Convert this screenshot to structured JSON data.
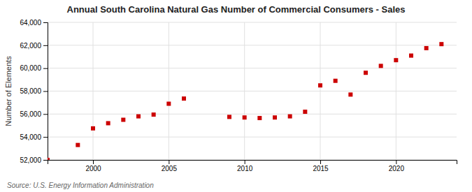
{
  "chart_data": {
    "type": "scatter",
    "title": "Annual South Carolina Natural Gas Number of Commercial Consumers - Sales",
    "y_label": "Number of Elements",
    "annotations": [
      "Source: U.S. Energy Information Administration"
    ],
    "x": [
      1997,
      1999,
      2000,
      2001,
      2002,
      2003,
      2004,
      2005,
      2006,
      2009,
      2010,
      2011,
      2012,
      2013,
      2014,
      2015,
      2016,
      2017,
      2018,
      2019,
      2020,
      2021,
      2022,
      2023
    ],
    "values": [
      52000,
      53300,
      54750,
      55200,
      55500,
      55800,
      55950,
      56900,
      57350,
      55750,
      55700,
      55650,
      55700,
      55800,
      56200,
      58500,
      58900,
      57700,
      59600,
      60200,
      60700,
      61100,
      61750,
      62100
    ],
    "color": "#cc0000",
    "marker": "square",
    "xlim": [
      1997.0,
      2024.0
    ],
    "xticks": [
      2000,
      2005,
      2010,
      2015,
      2020
    ],
    "ylim": [
      52000,
      64000
    ],
    "yticks": [
      {
        "value": 52000,
        "label": "52,000"
      },
      {
        "value": 54000,
        "label": "54,000"
      },
      {
        "value": 56000,
        "label": "56,000"
      },
      {
        "value": 58000,
        "label": "58,000"
      },
      {
        "value": 60000,
        "label": "60,000"
      },
      {
        "value": 62000,
        "label": "62,000"
      },
      {
        "value": 64000,
        "label": "64,000"
      }
    ],
    "grid": true
  }
}
